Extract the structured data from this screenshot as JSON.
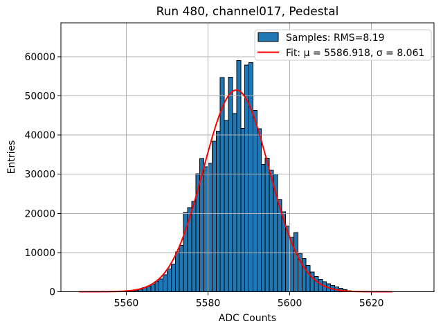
{
  "title": "Run 480, channel017, Pedestal",
  "xlabel": "ADC Counts",
  "ylabel": "Entries",
  "legend": {
    "samples_label": "Samples: RMS=8.19",
    "fit_label": "Fit: μ = 5586.918, σ = 8.061",
    "position": "upper right"
  },
  "colors": {
    "bar_fill": "#1f77b4",
    "bar_edge": "#000000",
    "fit_line": "#ff0000",
    "grid": "#b0b0b0",
    "frame": "#000000",
    "legend_border": "#cccccc",
    "background": "#ffffff"
  },
  "chart_data": {
    "type": "bar",
    "subtype": "histogram-with-gaussian-fit",
    "title": "Run 480, channel017, Pedestal",
    "xlabel": "ADC Counts",
    "ylabel": "Entries",
    "bin_width": 1,
    "bin_left_edges": [
      5560,
      5561,
      5562,
      5563,
      5564,
      5565,
      5566,
      5567,
      5568,
      5569,
      5570,
      5571,
      5572,
      5573,
      5574,
      5575,
      5576,
      5577,
      5578,
      5579,
      5580,
      5581,
      5582,
      5583,
      5584,
      5585,
      5586,
      5587,
      5588,
      5589,
      5590,
      5591,
      5592,
      5593,
      5594,
      5595,
      5596,
      5597,
      5598,
      5599,
      5600,
      5601,
      5602,
      5603,
      5604,
      5605,
      5606,
      5607,
      5608,
      5609,
      5610,
      5611,
      5612,
      5613,
      5614
    ],
    "values": [
      150,
      260,
      390,
      620,
      1030,
      1450,
      1950,
      2620,
      3300,
      4350,
      5800,
      7100,
      10150,
      11800,
      20200,
      21500,
      23100,
      30100,
      34000,
      31900,
      32800,
      38400,
      41000,
      54700,
      43700,
      54750,
      45500,
      59000,
      41700,
      57900,
      58500,
      46300,
      41600,
      32500,
      34100,
      31000,
      30000,
      23500,
      20400,
      16800,
      13900,
      15100,
      9700,
      8500,
      6750,
      5000,
      3900,
      3200,
      2600,
      2000,
      1550,
      1200,
      850,
      500,
      300
    ],
    "fit": {
      "mu": 5586.918,
      "sigma": 8.061,
      "amplitude": 51500,
      "x_range": [
        5548.5,
        5625
      ]
    },
    "stats": {
      "rms": 8.19
    },
    "xlim": [
      5544,
      5635.3
    ],
    "ylim": [
      0,
      68650
    ],
    "xticks": [
      5560,
      5580,
      5600,
      5620
    ],
    "xtick_labels": [
      "5560",
      "5580",
      "5600",
      "5620"
    ],
    "yticks": [
      0,
      10000,
      20000,
      30000,
      40000,
      50000,
      60000
    ],
    "ytick_labels": [
      "0",
      "10000",
      "20000",
      "30000",
      "40000",
      "50000",
      "60000"
    ],
    "grid": true,
    "legend_position": "upper right"
  }
}
